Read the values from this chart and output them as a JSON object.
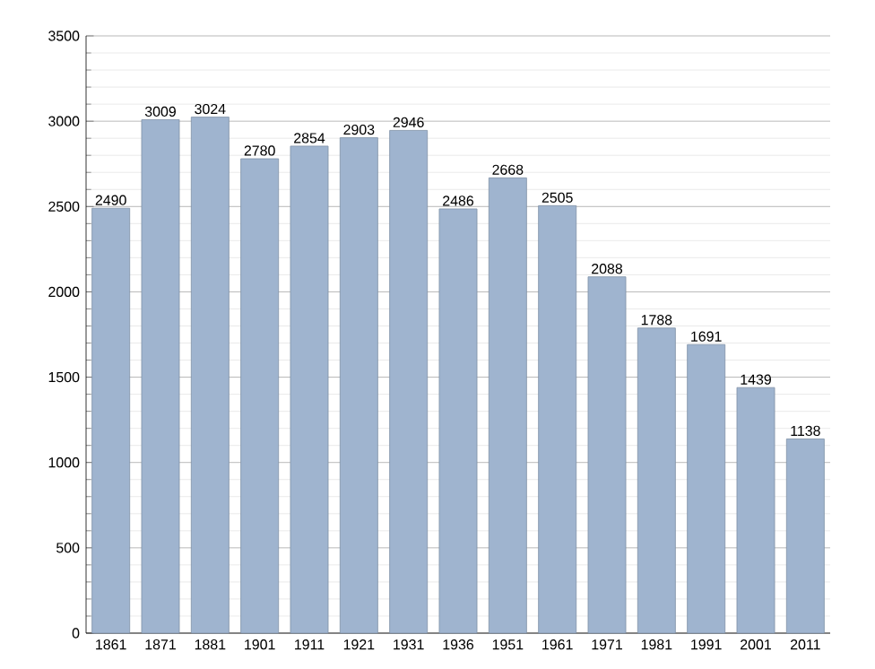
{
  "chart_data": {
    "type": "bar",
    "categories": [
      "1861",
      "1871",
      "1881",
      "1901",
      "1911",
      "1921",
      "1931",
      "1936",
      "1951",
      "1961",
      "1971",
      "1981",
      "1991",
      "2001",
      "2011"
    ],
    "values": [
      2490,
      3009,
      3024,
      2780,
      2854,
      2903,
      2946,
      2486,
      2668,
      2505,
      2088,
      1788,
      1691,
      1439,
      1138
    ],
    "color": "#9fb4cf",
    "data_labels": true,
    "grid": "y",
    "ylim": [
      0,
      3500
    ],
    "yticks": [
      0,
      500,
      1000,
      1500,
      2000,
      2500,
      3000,
      3500
    ]
  }
}
